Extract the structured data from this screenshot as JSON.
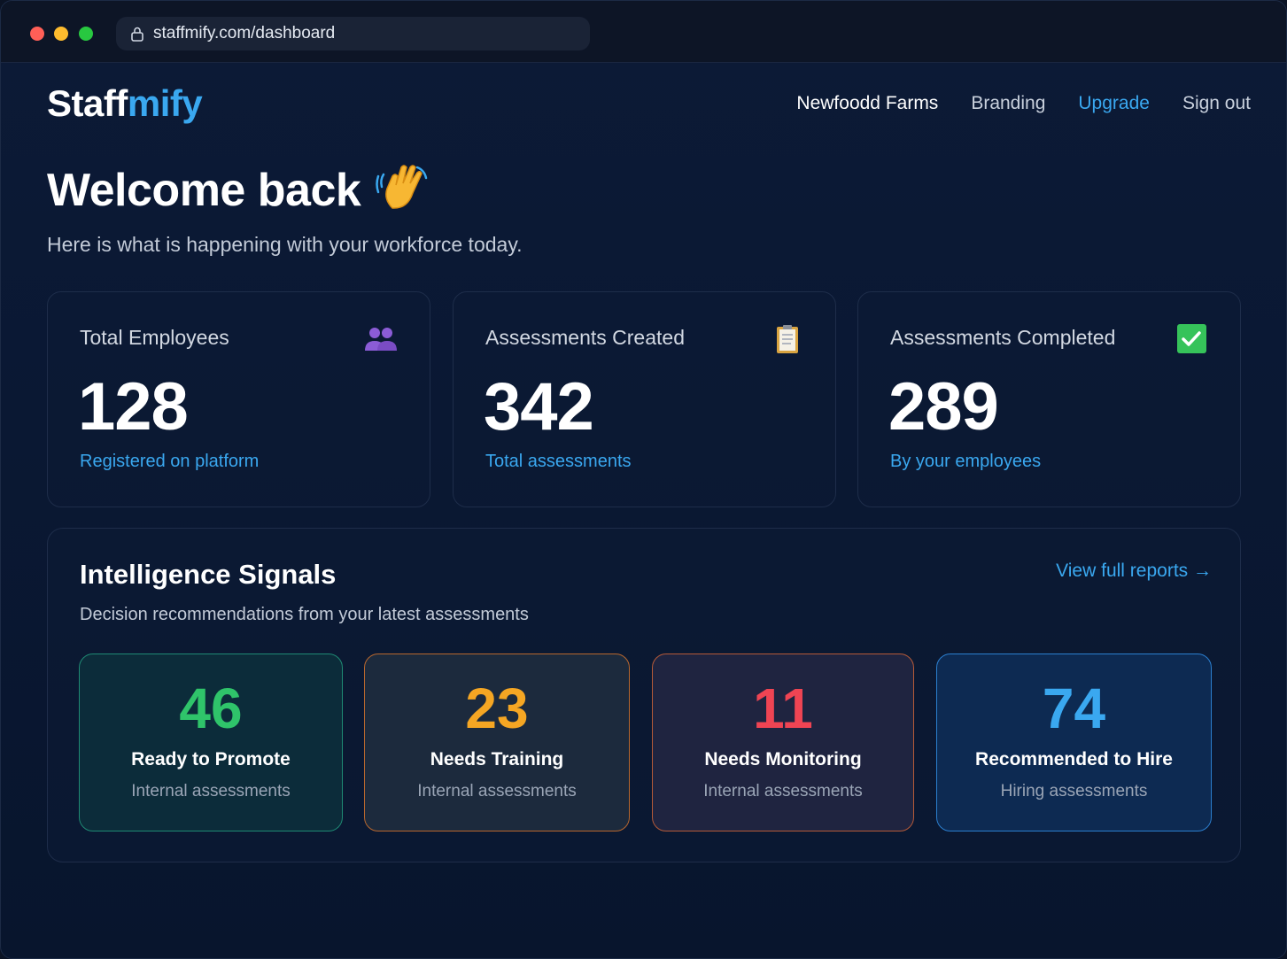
{
  "browser": {
    "url": "staffmify.com/dashboard"
  },
  "brand": {
    "part1": "Staff",
    "part2": "mify",
    "accent": "#3aa8f0"
  },
  "nav": {
    "org": "Newfoodd Farms",
    "branding": "Branding",
    "upgrade": "Upgrade",
    "signout": "Sign out"
  },
  "welcome": {
    "title": "Welcome back",
    "emoji_icon": "waving-hand-icon",
    "subtitle": "Here is what is happening with your workforce today."
  },
  "stats": [
    {
      "label": "Total Employees",
      "value": "128",
      "sub": "Registered on platform",
      "icon": "people-icon"
    },
    {
      "label": "Assessments Created",
      "value": "342",
      "sub": "Total assessments",
      "icon": "clipboard-icon"
    },
    {
      "label": "Assessments Completed",
      "value": "289",
      "sub": "By your employees",
      "icon": "checkmark-icon"
    }
  ],
  "signals": {
    "title": "Intelligence Signals",
    "subtitle": "Decision recommendations from your latest assessments",
    "link": "View full reports →",
    "tiles": [
      {
        "value": "46",
        "label": "Ready to Promote",
        "sub": "Internal assessments",
        "color": "#2fc46a"
      },
      {
        "value": "23",
        "label": "Needs Training",
        "sub": "Internal assessments",
        "color": "#f5a623"
      },
      {
        "value": "11",
        "label": "Needs Monitoring",
        "sub": "Internal assessments",
        "color": "#ef4453"
      },
      {
        "value": "74",
        "label": "Recommended to Hire",
        "sub": "Hiring assessments",
        "color": "#3aa8f0"
      }
    ]
  }
}
